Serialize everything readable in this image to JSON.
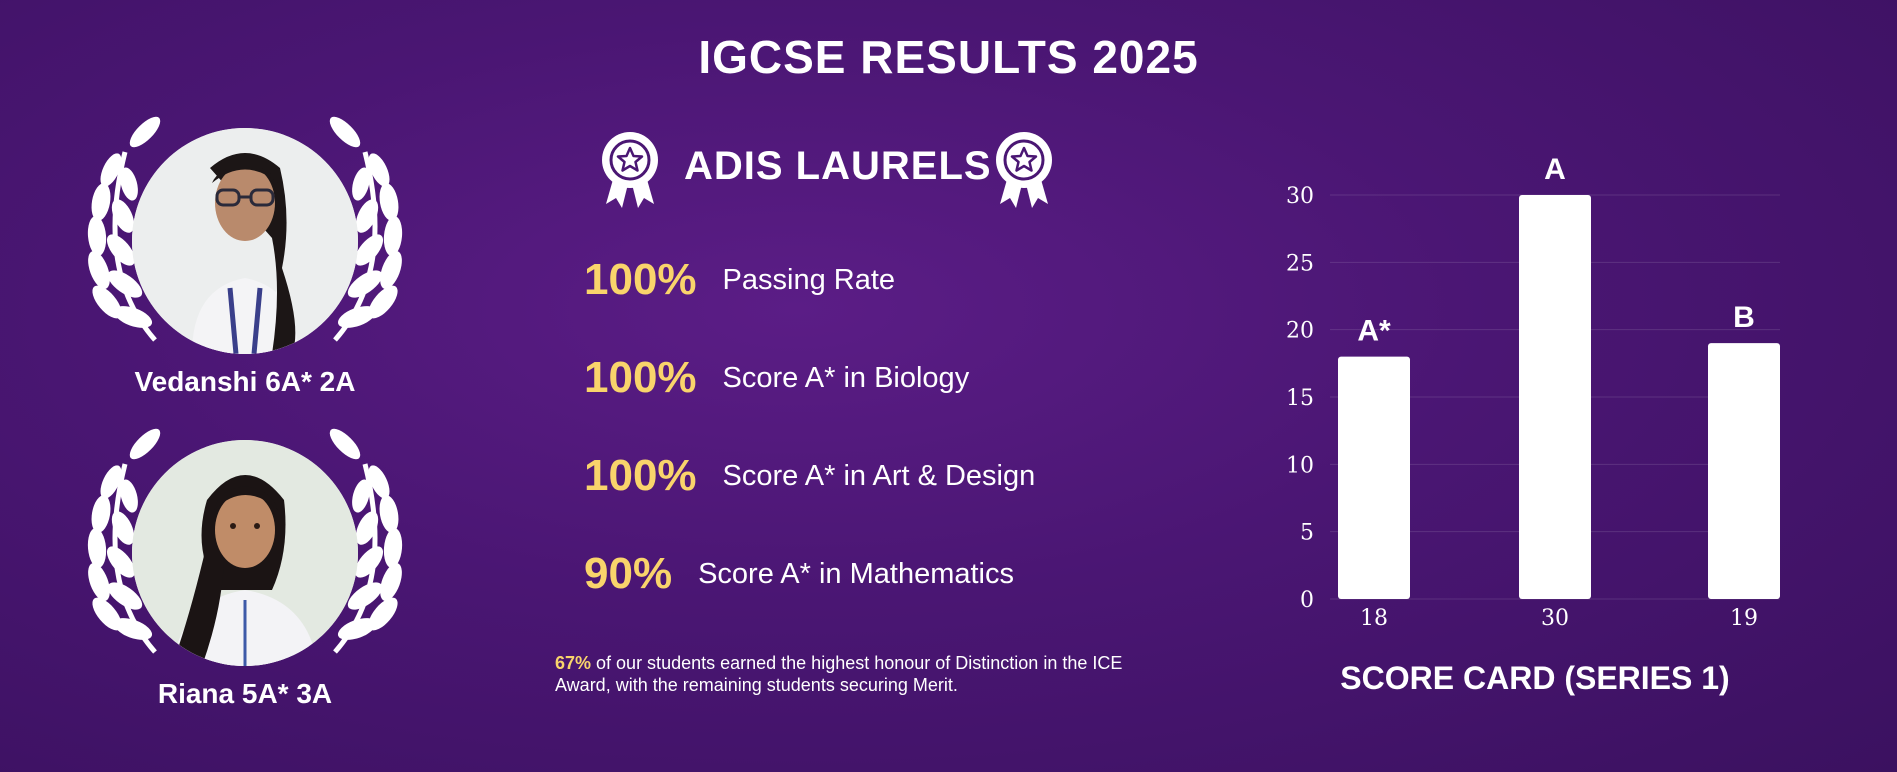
{
  "header": {
    "title": "IGCSE RESULTS 2025"
  },
  "students": [
    {
      "name": "Vedanshi 6A* 2A"
    },
    {
      "name": "Riana 5A* 3A"
    }
  ],
  "laurels": {
    "title": "ADIS LAURELS",
    "stats": [
      {
        "value": "100%",
        "label": "Passing Rate"
      },
      {
        "value": "100%",
        "label": "Score A* in Biology"
      },
      {
        "value": "100%",
        "label": "Score A* in Art & Design"
      },
      {
        "value": "90%",
        "label": "Score A* in Mathematics"
      }
    ],
    "note": {
      "highlight": "67%",
      "text": " of our students earned the highest honour of Distinction in the ICE Award, with the remaining students securing Merit."
    }
  },
  "chart_data": {
    "type": "bar",
    "categories": [
      "18",
      "30",
      "19"
    ],
    "values": [
      18,
      30,
      19
    ],
    "data_labels": [
      "A*",
      "A",
      "B"
    ],
    "title": "SCORE CARD (SERIES 1)",
    "ylim": [
      0,
      30
    ],
    "yticks": [
      0,
      5,
      10,
      15,
      20,
      25,
      30
    ],
    "grid": true,
    "colors": {
      "bar": "#ffffff",
      "background": "#4a1673",
      "accent": "#f9d46b"
    }
  }
}
